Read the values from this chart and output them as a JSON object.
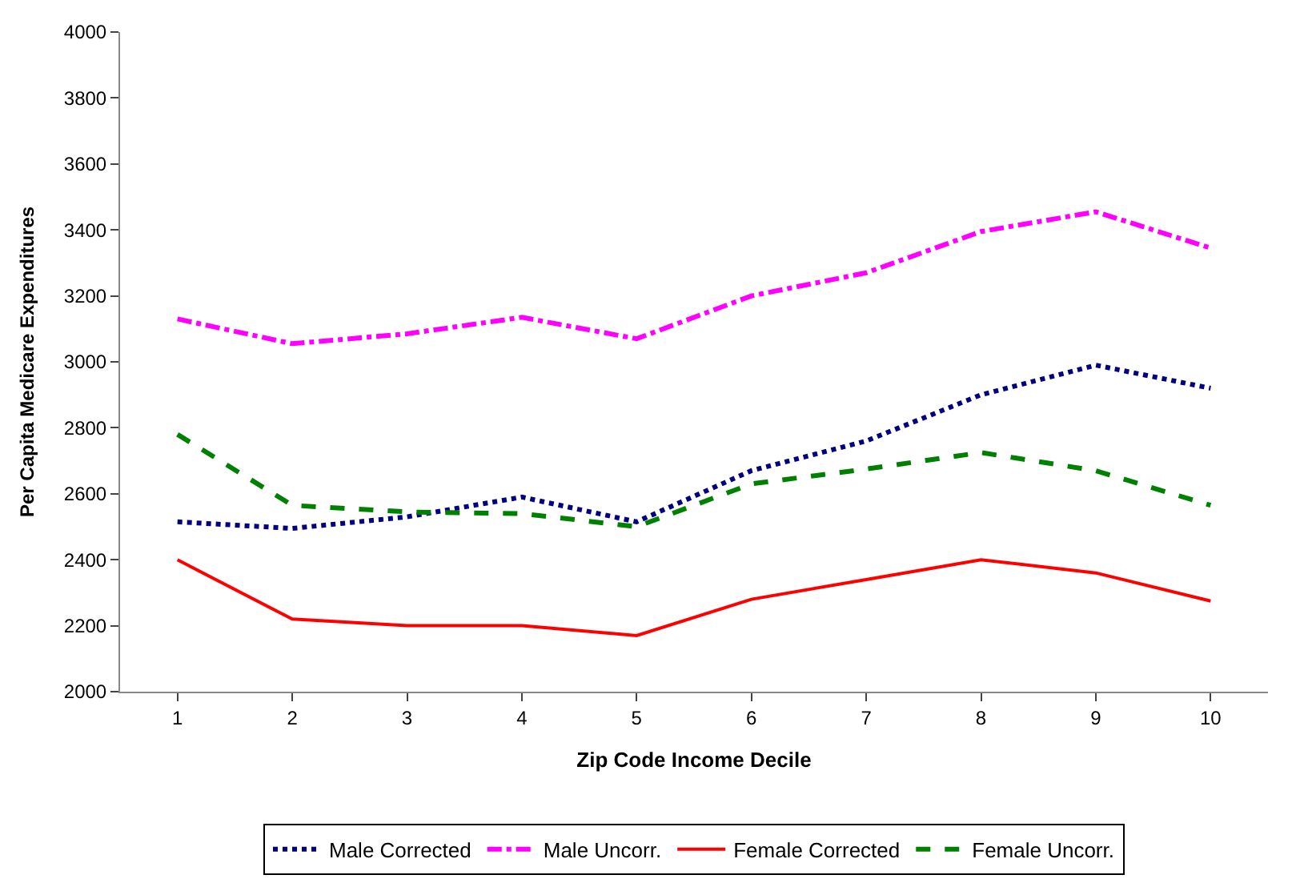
{
  "chart_data": {
    "type": "line",
    "xlabel": "Zip Code Income Decile",
    "ylabel": "Per Capita Medicare Expenditures",
    "categories": [
      "1",
      "2",
      "3",
      "4",
      "5",
      "6",
      "7",
      "8",
      "9",
      "10"
    ],
    "series": [
      {
        "name": "Male Corrected",
        "color": "#000080",
        "line_style": "dotted",
        "values": [
          2515,
          2495,
          2530,
          2590,
          2515,
          2670,
          2760,
          2900,
          2990,
          2920
        ]
      },
      {
        "name": "Male Uncorr.",
        "color": "#ff00ff",
        "line_style": "dashdot",
        "values": [
          3130,
          3055,
          3085,
          3135,
          3070,
          3200,
          3270,
          3395,
          3455,
          3345
        ]
      },
      {
        "name": "Female Corrected",
        "color": "#ff0000",
        "line_style": "solid",
        "values": [
          2400,
          2220,
          2200,
          2200,
          2170,
          2280,
          2340,
          2400,
          2360,
          2275
        ]
      },
      {
        "name": "Female Uncorr.",
        "color": "#008000",
        "line_style": "dashed",
        "values": [
          2780,
          2565,
          2545,
          2540,
          2500,
          2630,
          2675,
          2725,
          2670,
          2565
        ]
      }
    ],
    "ylim": [
      2000,
      4000
    ],
    "yticks": [
      2000,
      2200,
      2400,
      2600,
      2800,
      3000,
      3200,
      3400,
      3600,
      3800,
      4000
    ],
    "legend": "bottom",
    "marker": "none"
  }
}
